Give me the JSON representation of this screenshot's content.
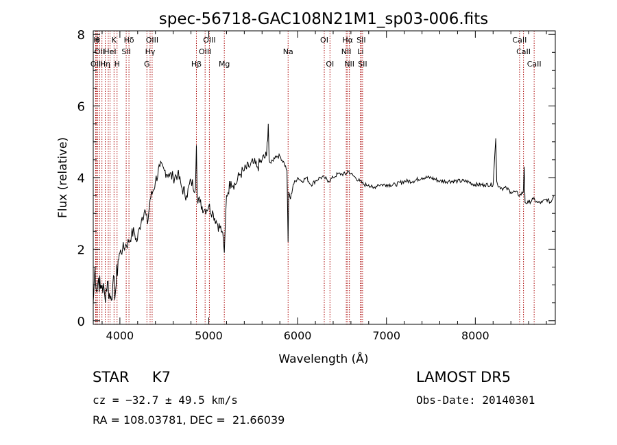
{
  "chart_data": {
    "type": "line",
    "title": "spec-56718-GAC108N21M1_sp03-006.fits",
    "xlabel": "Wavelength (Å)",
    "ylabel": "Flux (relative)",
    "xlim": [
      3700,
      8900
    ],
    "ylim": [
      -0.1,
      8.1
    ],
    "xticks": [
      "4000",
      "5000",
      "6000",
      "7000",
      "8000"
    ],
    "yticks": [
      "0",
      "2",
      "4",
      "6",
      "8"
    ],
    "grid": false,
    "line_color": "#000000",
    "marker_color": "#aa0000",
    "series": [
      {
        "x": [
          3700,
          3720,
          3740,
          3760,
          3780,
          3800,
          3830,
          3860,
          3890,
          3920,
          3950,
          3980,
          4000,
          4030,
          4060,
          4100,
          4130,
          4160,
          4190,
          4220,
          4250,
          4280,
          4310,
          4340,
          4370,
          4400,
          4450,
          4500,
          4550,
          4600,
          4650,
          4700,
          4750,
          4800,
          4850,
          4861,
          4870,
          4900,
          4950,
          5000,
          5050,
          5100,
          5150,
          5175,
          5185,
          5200,
          5250,
          5300,
          5350,
          5400,
          5450,
          5500,
          5550,
          5600,
          5650,
          5670,
          5680,
          5700,
          5750,
          5800,
          5850,
          5880,
          5893,
          5900,
          5920,
          5950,
          6000,
          6050,
          6100,
          6150,
          6200,
          6250,
          6300,
          6350,
          6400,
          6450,
          6500,
          6550,
          6563,
          6600,
          6650,
          6700,
          6750,
          6800,
          6850,
          6900,
          6950,
          7000,
          7100,
          7200,
          7300,
          7400,
          7500,
          7600,
          7700,
          7800,
          7900,
          8000,
          8100,
          8200,
          8230,
          8240,
          8250,
          8300,
          8350,
          8400,
          8450,
          8500,
          8540,
          8550,
          8560,
          8600,
          8650,
          8700,
          8750,
          8800,
          8850,
          8880
        ],
        "y": [
          0.5,
          1.5,
          0.8,
          1.2,
          0.9,
          1.0,
          0.7,
          1.1,
          0.6,
          1.0,
          0.8,
          1.7,
          1.9,
          2.0,
          2.1,
          2.2,
          2.4,
          2.5,
          2.2,
          2.6,
          2.9,
          3.1,
          2.7,
          3.4,
          3.6,
          3.9,
          4.3,
          4.2,
          4.1,
          4.0,
          4.1,
          3.7,
          3.5,
          3.9,
          3.7,
          4.9,
          3.5,
          3.3,
          3.1,
          3.2,
          3.0,
          2.7,
          2.5,
          1.9,
          2.6,
          3.5,
          3.9,
          3.8,
          4.1,
          4.2,
          4.3,
          4.4,
          4.3,
          4.5,
          4.6,
          5.5,
          4.5,
          4.4,
          4.6,
          4.6,
          4.4,
          4.2,
          2.2,
          3.6,
          3.4,
          3.8,
          4.0,
          3.9,
          4.0,
          3.8,
          3.9,
          4.0,
          4.0,
          3.9,
          4.0,
          4.1,
          4.1,
          4.1,
          4.2,
          4.1,
          4.0,
          3.9,
          3.8,
          3.8,
          3.7,
          3.8,
          3.8,
          3.8,
          3.8,
          3.9,
          3.9,
          4.0,
          4.0,
          3.9,
          3.9,
          3.9,
          3.9,
          3.8,
          3.8,
          3.8,
          5.1,
          3.9,
          3.8,
          3.7,
          3.7,
          3.6,
          3.6,
          3.5,
          3.6,
          4.3,
          3.3,
          3.3,
          3.4,
          3.3,
          3.3,
          3.4,
          3.3,
          3.5
        ]
      }
    ],
    "line_markers": [
      {
        "x": 3727,
        "label": "OII",
        "row": 3
      },
      {
        "x": 3734,
        "label": "H",
        "row": 1
      },
      {
        "x": 3750,
        "label": "θ",
        "row": 1
      },
      {
        "x": 3771,
        "label": "OII",
        "row": 2
      },
      {
        "x": 3798,
        "label": "",
        "row": 0
      },
      {
        "x": 3835,
        "label": "Hη",
        "row": 3
      },
      {
        "x": 3869,
        "label": "",
        "row": 0
      },
      {
        "x": 3889,
        "label": "HeI",
        "row": 2
      },
      {
        "x": 3934,
        "label": "K",
        "row": 1
      },
      {
        "x": 3968,
        "label": "H",
        "row": 3
      },
      {
        "x": 4071,
        "label": "SII",
        "row": 2
      },
      {
        "x": 4102,
        "label": "Hδ",
        "row": 1
      },
      {
        "x": 4304,
        "label": "G",
        "row": 3
      },
      {
        "x": 4340,
        "label": "Hγ",
        "row": 2
      },
      {
        "x": 4363,
        "label": "OIII",
        "row": 1
      },
      {
        "x": 4861,
        "label": "Hβ",
        "row": 3
      },
      {
        "x": 4959,
        "label": "OIII",
        "row": 2
      },
      {
        "x": 5007,
        "label": "OIII",
        "row": 1
      },
      {
        "x": 5175,
        "label": "Mg",
        "row": 3
      },
      {
        "x": 5893,
        "label": "Na",
        "row": 2
      },
      {
        "x": 6300,
        "label": "OI",
        "row": 1
      },
      {
        "x": 6364,
        "label": "OI",
        "row": 3
      },
      {
        "x": 6548,
        "label": "NII",
        "row": 2
      },
      {
        "x": 6563,
        "label": "Hα",
        "row": 1
      },
      {
        "x": 6583,
        "label": "NII",
        "row": 3
      },
      {
        "x": 6708,
        "label": "Li",
        "row": 2
      },
      {
        "x": 6716,
        "label": "SII",
        "row": 1
      },
      {
        "x": 6731,
        "label": "SII",
        "row": 3
      },
      {
        "x": 8498,
        "label": "CaII",
        "row": 1
      },
      {
        "x": 8542,
        "label": "CaII",
        "row": 2
      },
      {
        "x": 8662,
        "label": "CaII",
        "row": 3
      }
    ]
  },
  "info": {
    "object_class": "STAR     K7",
    "survey": "LAMOST DR5",
    "redshift": "cz = −32.7 ± 49.5 km/s",
    "obs_date": "Obs-Date: 20140301",
    "coordinates": "RA = 108.03781, DEC =  21.66039"
  }
}
